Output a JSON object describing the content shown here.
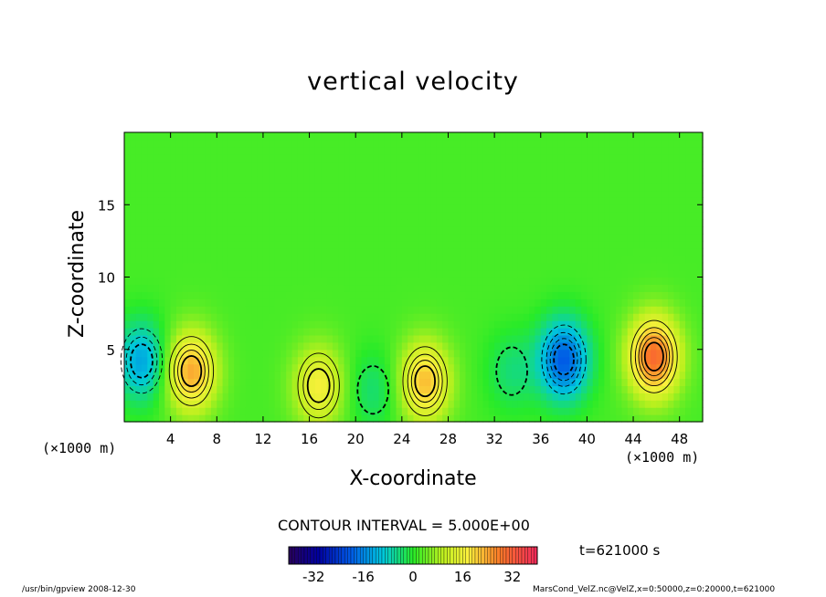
{
  "chart_data": {
    "type": "heatmap",
    "title": "vertical velocity",
    "xlabel": "X-coordinate",
    "ylabel": "Z-coordinate",
    "x_unit": "(×1000 m)",
    "y_unit": "(×1000 m)",
    "xlim": [
      0,
      50
    ],
    "ylim": [
      0,
      20
    ],
    "x_ticks": [
      4,
      8,
      12,
      16,
      20,
      24,
      28,
      32,
      36,
      40,
      44,
      48
    ],
    "y_ticks": [
      5,
      10,
      15
    ],
    "contour_interval": "CONTOUR INTERVAL = 5.000E+00",
    "time_label": "t=621000 s",
    "colorbar_ticks": [
      -32,
      -16,
      0,
      16,
      32
    ],
    "colorbar_range": [
      -40,
      40
    ],
    "features": [
      {
        "x": 5.8,
        "z": 3.5,
        "value": 22,
        "sign": "up"
      },
      {
        "x": 16.8,
        "z": 2.5,
        "value": 15,
        "sign": "up"
      },
      {
        "x": 26.0,
        "z": 2.8,
        "value": 20,
        "sign": "up"
      },
      {
        "x": 45.8,
        "z": 4.5,
        "value": 28,
        "sign": "up"
      },
      {
        "x": 1.5,
        "z": 4.2,
        "value": -15,
        "sign": "down"
      },
      {
        "x": 38.0,
        "z": 4.3,
        "value": -22,
        "sign": "down"
      },
      {
        "x": 21.5,
        "z": 2.2,
        "value": -6,
        "sign": "down"
      },
      {
        "x": 33.5,
        "z": 3.5,
        "value": -6,
        "sign": "down"
      }
    ]
  },
  "footer": {
    "left": "/usr/bin/gpview   2008-12-30",
    "right": "MarsCond_VelZ.nc@VelZ,x=0:50000,z=0:20000,t=621000"
  }
}
